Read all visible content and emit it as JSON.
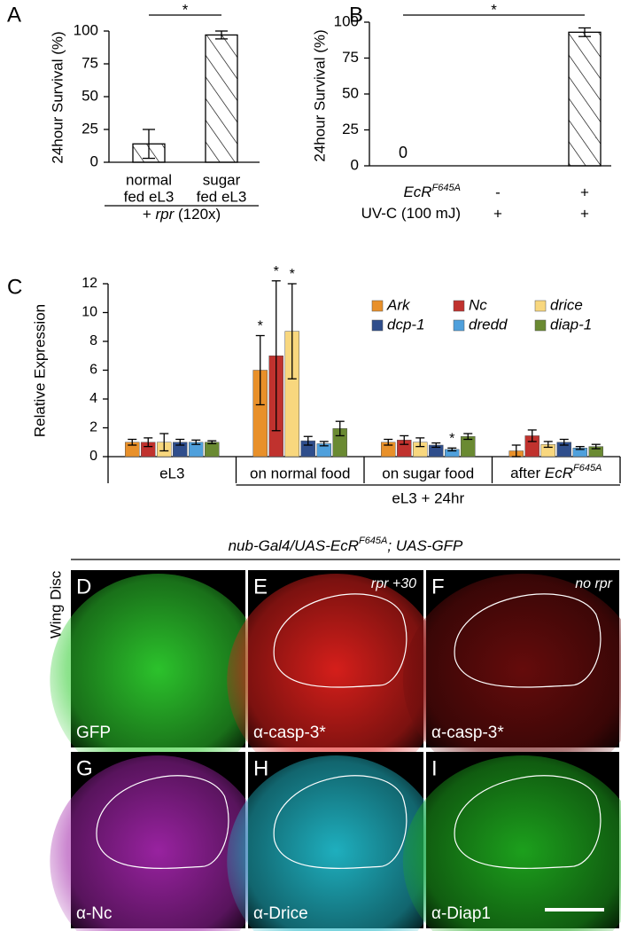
{
  "chart_data": [
    {
      "type": "bar",
      "panel_label": "A",
      "ylabel": "24hour Survival (%)",
      "categories": [
        [
          "normal",
          "fed eL3"
        ],
        [
          "sugar",
          "fed eL3"
        ]
      ],
      "xlabel": {
        "prefix": "+",
        "italic": "rpr",
        "suffix": "(120x)"
      },
      "values": [
        14,
        97
      ],
      "errors": [
        11,
        3
      ],
      "color": "#000000",
      "hatch": true,
      "significance": "*",
      "ylim": [
        0,
        100
      ],
      "yticks": [
        0,
        25,
        50,
        75,
        100
      ]
    },
    {
      "type": "bar",
      "panel_label": "B",
      "ylabel": "24hour Survival (%)",
      "values": [
        0,
        93
      ],
      "errors": [
        null,
        3
      ],
      "value_labels": [
        "0",
        null
      ],
      "color": "#000000",
      "hatch": true,
      "significance": "*",
      "conditions": [
        {
          "label": {
            "italic": "EcR",
            "sup": "F645A"
          },
          "entries": [
            "-",
            "+"
          ]
        },
        {
          "label": "UV-C (100 mJ)",
          "entries": [
            "+",
            "+"
          ]
        }
      ],
      "ylim": [
        0,
        100
      ],
      "yticks": [
        0,
        25,
        50,
        75,
        100
      ]
    },
    {
      "type": "grouped-bar",
      "panel_label": "C",
      "ylabel": "Relative Expression",
      "categories": [
        "eL3",
        "on normal food",
        "on sugar food",
        {
          "prefix": "after",
          "italic": "EcR",
          "sup": "F645A"
        }
      ],
      "group_label": "eL3 + 24hr",
      "series": [
        {
          "name": "Ark",
          "color": "#e8902a",
          "values": [
            1.0,
            6.0,
            1.0,
            0.4
          ],
          "errors": [
            0.2,
            2.4,
            0.2,
            0.4
          ],
          "significance": [
            null,
            "*",
            null,
            null
          ]
        },
        {
          "name": "Nc",
          "color": "#c0322e",
          "values": [
            1.0,
            7.0,
            1.15,
            1.45
          ],
          "errors": [
            0.3,
            5.2,
            0.3,
            0.4
          ],
          "significance": [
            null,
            "*",
            null,
            null
          ]
        },
        {
          "name": "drice",
          "color": "#f8d77e",
          "values": [
            1.0,
            8.7,
            1.0,
            0.85
          ],
          "errors": [
            0.6,
            3.3,
            0.3,
            0.2
          ],
          "significance": [
            null,
            "*",
            null,
            null
          ]
        },
        {
          "name": "dcp-1",
          "color": "#2f4e8c",
          "values": [
            1.0,
            1.1,
            0.8,
            1.0
          ],
          "errors": [
            0.2,
            0.3,
            0.15,
            0.2
          ],
          "significance": [
            null,
            null,
            null,
            null
          ]
        },
        {
          "name": "dredd",
          "color": "#4fa0dc",
          "values": [
            1.0,
            0.9,
            0.5,
            0.6
          ],
          "errors": [
            0.15,
            0.15,
            0.1,
            0.1
          ],
          "significance": [
            null,
            null,
            "*",
            null
          ]
        },
        {
          "name": "diap-1",
          "color": "#6a8a32",
          "values": [
            1.0,
            1.95,
            1.4,
            0.7
          ],
          "errors": [
            0.1,
            0.5,
            0.2,
            0.15
          ],
          "significance": [
            null,
            null,
            null,
            null
          ]
        }
      ],
      "ylim": [
        0,
        12
      ],
      "yticks": [
        0,
        2,
        4,
        6,
        8,
        10,
        12
      ]
    }
  ],
  "images": {
    "title": {
      "prefix": "nub-Gal4/UAS-EcR",
      "sup": "F645A",
      "suffix": "; UAS-GFP"
    },
    "row_label": "Wing Disc",
    "panels": [
      {
        "letter": "D",
        "stain": "GFP",
        "color": "#2ecc2e"
      },
      {
        "letter": "E",
        "stain": "α-casp-3*",
        "note": "rpr +30",
        "color": "#e0201c"
      },
      {
        "letter": "F",
        "stain": "α-casp-3*",
        "note": "no rpr",
        "color": "#6a0c0c"
      },
      {
        "letter": "G",
        "stain": "α-Nc",
        "color": "#a024a8"
      },
      {
        "letter": "H",
        "stain": "α-Drice",
        "color": "#20b8c8"
      },
      {
        "letter": "I",
        "stain": "α-Diap1",
        "color": "#1ea81e"
      }
    ]
  }
}
